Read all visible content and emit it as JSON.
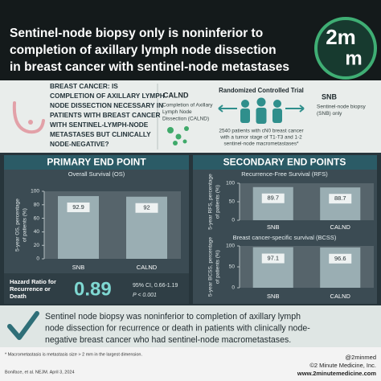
{
  "header": {
    "title_lines": [
      "Sentinel-node biopsy only is noninferior to",
      "completion of axillary lymph node dissection",
      "in breast cancer with sentinel-node metastases"
    ],
    "logo": [
      "2m",
      "m"
    ]
  },
  "intro": {
    "question_lines": [
      "BREAST CANCER: IS",
      "COMPLETION OF AXILLARY LYMPH",
      "NODE DISSECTION NECESSARY IN",
      "PATIENTS WITH BREAST CANCER",
      "WITH SENTINEL-LYMPH-NODE",
      "METASTASES BUT CLINICALLY",
      "NODE-NEGATIVE?"
    ],
    "calnd": {
      "label": "CALND",
      "description_lines": [
        "Completion of Axillary",
        "Lymph Node",
        "Dissection (CALND)"
      ]
    },
    "trial": {
      "title": "Randomized Controlled Trial",
      "description_lines": [
        "2540 patients with cN0 breast cancer",
        "with a tumor stage of T1-T3 and 1-2",
        "sentinel-node macrometastases*"
      ]
    },
    "snb": {
      "label": "SNB",
      "description_lines": [
        "Sentinel-node biopsy",
        "(SNB) only"
      ]
    }
  },
  "primary": {
    "heading": "PRIMARY END POINT",
    "hazard": {
      "label_lines": [
        "Hazard Ratio for",
        "Recurrence or",
        "Death"
      ],
      "value": "0.89",
      "ci": "95% CI, 0.66-1.19",
      "p": "P < 0.001"
    }
  },
  "secondary": {
    "heading": "SECONDARY END POINTS"
  },
  "chart_data": [
    {
      "type": "bar",
      "title": "Overall Survival (OS)",
      "y_label_lines": [
        "5-year OS, percentage",
        "of patients (%)"
      ],
      "categories": [
        "SNB",
        "CALND"
      ],
      "values": [
        92.9,
        92
      ],
      "color": "#9aaeb3",
      "ylim": [
        0,
        100
      ],
      "yticks": [
        0,
        20,
        40,
        60,
        80,
        100
      ]
    },
    {
      "type": "bar",
      "title": "Recurrence-Free Survival (RFS)",
      "y_label_lines": [
        "5-year RFS, percentage",
        "of patients (%)"
      ],
      "categories": [
        "SNB",
        "CALND"
      ],
      "values": [
        89.7,
        88.7
      ],
      "color": "#9aaeb3",
      "ylim": [
        0,
        100
      ],
      "yticks": [
        0,
        50,
        100
      ]
    },
    {
      "type": "bar",
      "title": "Breast cancer-specific survival (BCSS)",
      "y_label_lines": [
        "5-year BCSS, percentage",
        "of patients (%)"
      ],
      "categories": [
        "SNB",
        "CALND"
      ],
      "values": [
        97.1,
        96.6
      ],
      "color": "#9aaeb3",
      "ylim": [
        0,
        100
      ],
      "yticks": [
        0,
        50,
        100
      ]
    }
  ],
  "conclusion_lines": [
    "Sentinel node biopsy was noninferior to completion of axillary lymph",
    "node dissection for recurrence or death in patients with clinically node-",
    "negative breast cancer who had sentinel-node macrometastases."
  ],
  "footer": {
    "note": "* Macrometastasis is metastasis size > 2 mm in the largest dimension.",
    "citation": "Boniface, et al. NEJM. April 3, 2024",
    "handle": "@2minmed",
    "copyright": "©2 Minute Medicine, Inc.",
    "website": "www.2minutemedicine.com"
  }
}
